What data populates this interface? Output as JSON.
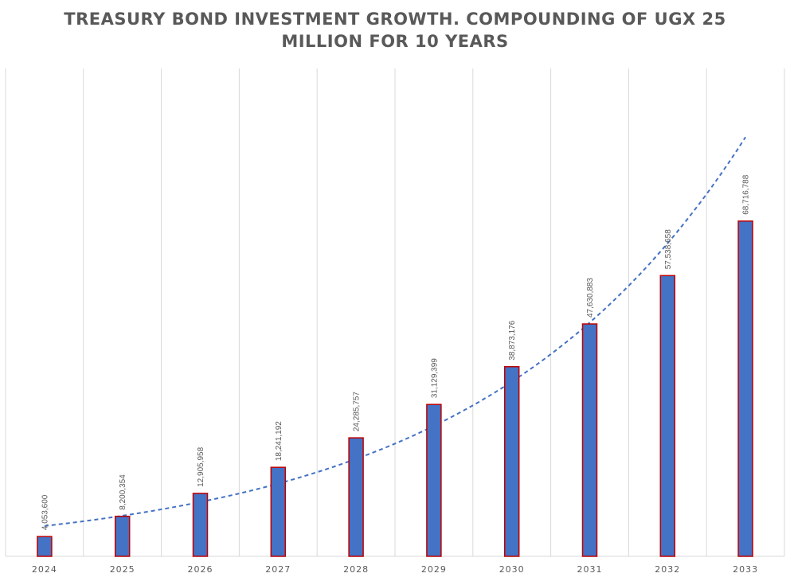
{
  "chart_data": {
    "type": "bar",
    "title_lines": [
      "TREASURY BOND INVESTMENT GROWTH. COMPOUNDING OF UGX 25",
      "MILLION FOR 10 YEARS"
    ],
    "categories": [
      "2024",
      "2025",
      "2026",
      "2027",
      "2028",
      "2029",
      "2030",
      "2031",
      "2032",
      "2033"
    ],
    "series": [
      {
        "values": [
          4053600,
          8200354,
          12905958,
          18241192,
          24285757,
          31129399,
          38873176,
          47630883,
          57538658,
          68716788
        ],
        "labels": [
          "4,053,600",
          "8,200,354",
          "12,905,958",
          "18,241,192",
          "24,285,757",
          "31,129,399",
          "38,873,176",
          "47,630,883",
          "57,538,658",
          "68,716,788"
        ]
      }
    ],
    "trendline": {
      "type": "exponential",
      "style": "dashed"
    },
    "ylim": [
      0,
      100000000
    ],
    "grid": "vertical",
    "legend": "none",
    "colors": {
      "bar_fill": "#4472C4",
      "bar_border": "#C00000",
      "trendline": "#4472C4",
      "grid": "#D9D9D9",
      "text": "#595959"
    }
  }
}
